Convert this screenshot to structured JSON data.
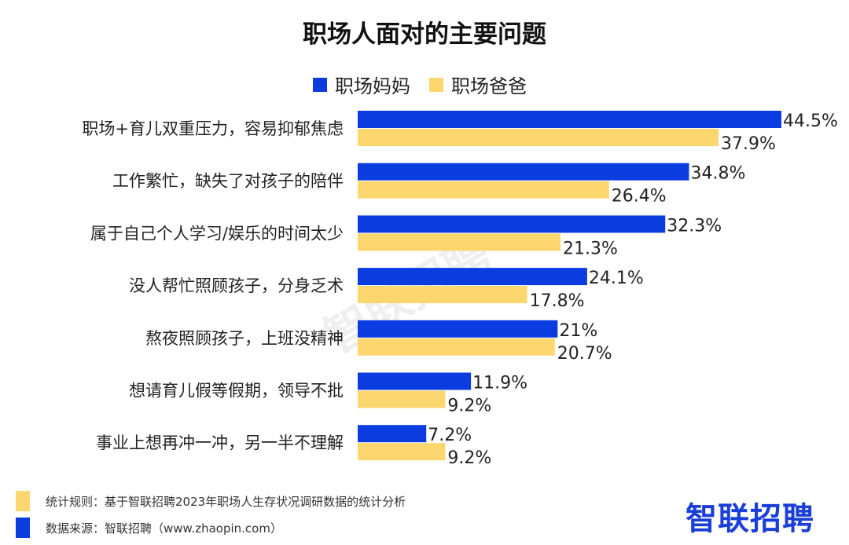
{
  "chart_data": {
    "type": "bar",
    "orientation": "horizontal",
    "title": "职场人面对的主要问题",
    "categories": [
      "职场+育儿双重压力，容易抑郁焦虑",
      "工作繁忙，缺失了对孩子的陪伴",
      "属于自己个人学习/娱乐的时间太少",
      "没人帮忙照顾孩子，分身乏术",
      "熬夜照顾孩子，上班没精神",
      "想请育儿假等假期，领导不批",
      "事业上想再冲一冲，另一半不理解"
    ],
    "series": [
      {
        "name": "职场妈妈",
        "color": "#0b3ce0",
        "values": [
          44.5,
          34.8,
          32.3,
          24.1,
          21,
          11.9,
          7.2
        ],
        "labels": [
          "44.5%",
          "34.8%",
          "32.3%",
          "24.1%",
          "21%",
          "11.9%",
          "7.2%"
        ]
      },
      {
        "name": "职场爸爸",
        "color": "#fcd66e",
        "values": [
          37.9,
          26.4,
          21.3,
          17.8,
          20.7,
          9.2,
          9.2
        ],
        "labels": [
          "37.9%",
          "26.4%",
          "21.3%",
          "17.8%",
          "20.7%",
          "9.2%",
          "9.2%"
        ]
      }
    ],
    "xlim": [
      0,
      50
    ],
    "grid": false,
    "legend": "top-center"
  },
  "footer": {
    "rule": "统计规则：基于智联招聘2023年职场人生存状况调研数据的统计分析",
    "source": "数据来源：智联招聘（www.zhaopin.com）"
  },
  "logo": "智联招聘",
  "watermark": "智联招聘"
}
